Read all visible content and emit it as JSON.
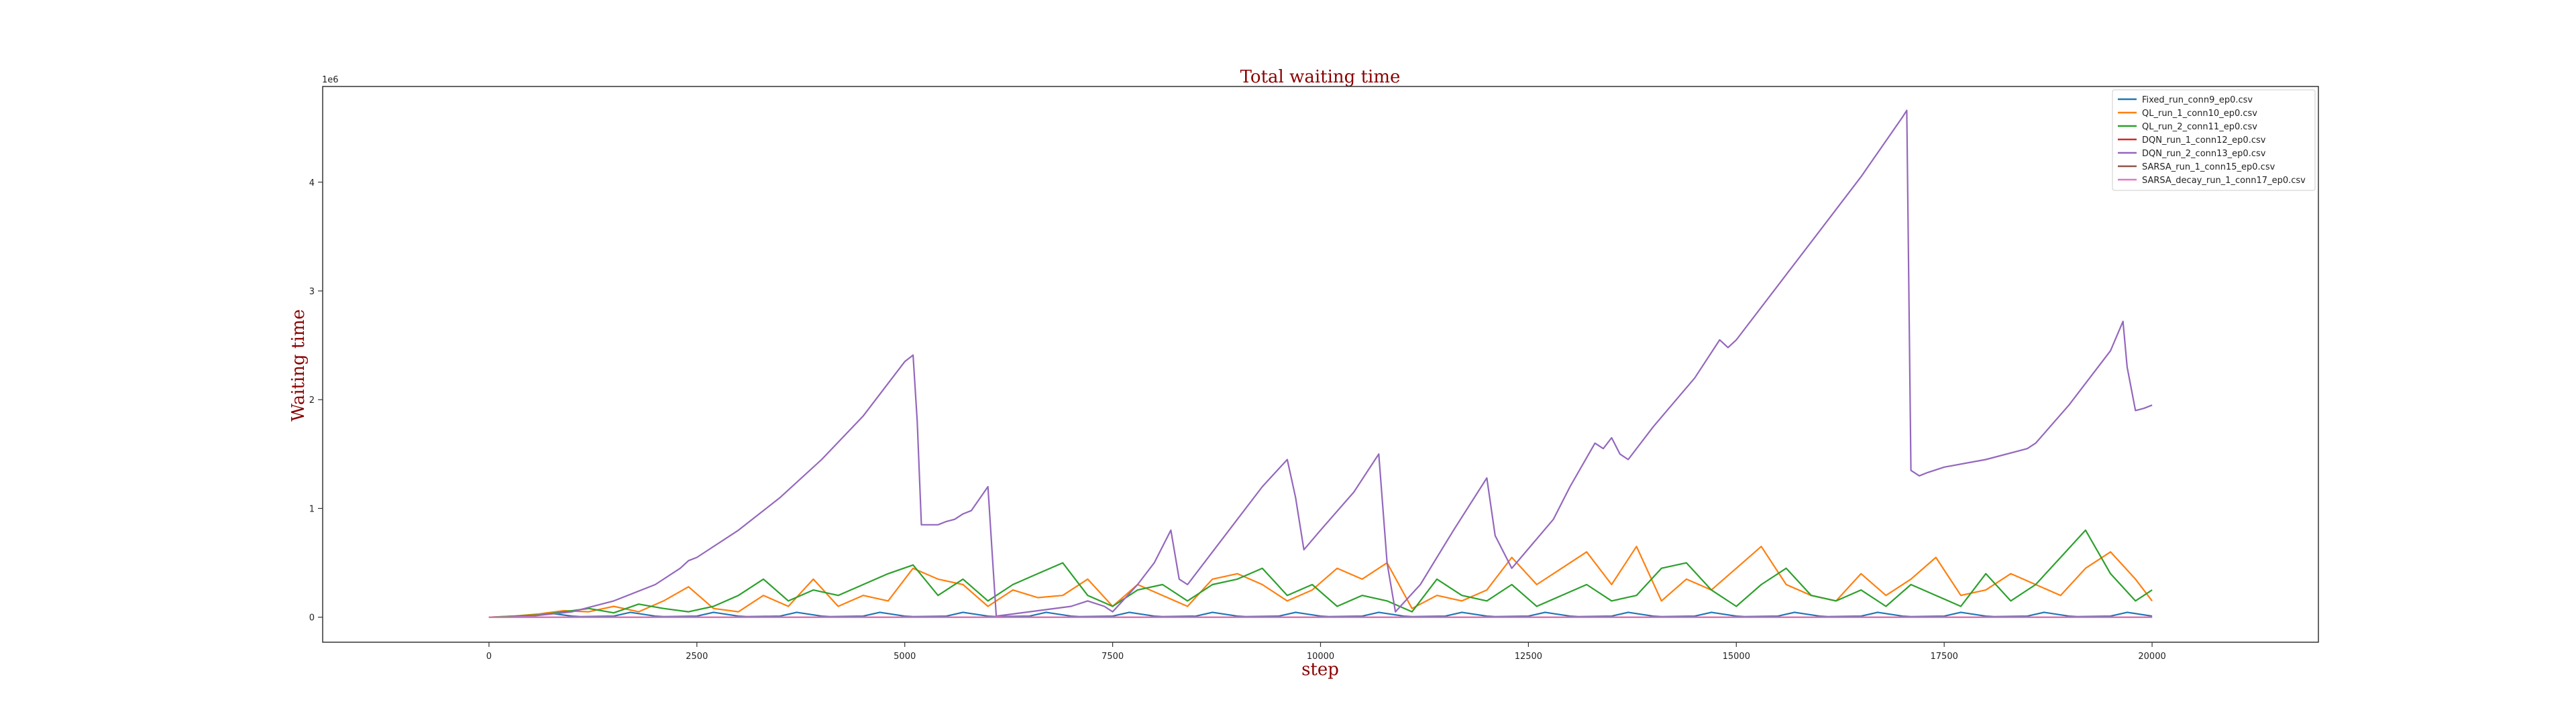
{
  "chart_data": {
    "type": "line",
    "title": "Total waiting time",
    "xlabel": "step",
    "ylabel": "Waiting time",
    "y_offset_label": "1e6",
    "xlim": [
      -2000,
      22000
    ],
    "ylim": [
      -0.23,
      4.88
    ],
    "xticks": [
      0,
      2500,
      5000,
      7500,
      10000,
      12500,
      15000,
      17500,
      20000
    ],
    "yticks": [
      0,
      1,
      2,
      3,
      4
    ],
    "grid": false,
    "legend_position": "top-right",
    "series": [
      {
        "name": "Fixed_run_conn9_ep0.csv",
        "color": "#1f77b4",
        "x": [
          0,
          500,
          700,
          1000,
          1100,
          1500,
          1700,
          2000,
          2100,
          2500,
          2700,
          3000,
          3100,
          3500,
          3700,
          4000,
          4100,
          4500,
          4700,
          5000,
          5100,
          5500,
          5700,
          6000,
          6100,
          6500,
          6700,
          7000,
          7100,
          7500,
          7700,
          8000,
          8100,
          8500,
          8700,
          9000,
          9100,
          9500,
          9700,
          10000,
          10100,
          10500,
          10700,
          11000,
          11100,
          11500,
          11700,
          12000,
          12100,
          12500,
          12700,
          13000,
          13100,
          13500,
          13700,
          14000,
          14100,
          14500,
          14700,
          15000,
          15100,
          15500,
          15700,
          16000,
          16100,
          16500,
          16700,
          17000,
          17100,
          17500,
          17700,
          18000,
          18100,
          18500,
          18700,
          19000,
          19100,
          19500,
          19700,
          20000
        ],
        "y": [
          0,
          0.01,
          0.04,
          0.01,
          0.005,
          0.01,
          0.045,
          0.01,
          0.005,
          0.01,
          0.045,
          0.01,
          0.005,
          0.01,
          0.045,
          0.01,
          0.005,
          0.01,
          0.045,
          0.01,
          0.005,
          0.01,
          0.045,
          0.01,
          0.005,
          0.01,
          0.045,
          0.01,
          0.005,
          0.01,
          0.045,
          0.01,
          0.005,
          0.01,
          0.045,
          0.01,
          0.005,
          0.01,
          0.045,
          0.01,
          0.005,
          0.01,
          0.045,
          0.01,
          0.005,
          0.01,
          0.045,
          0.01,
          0.005,
          0.01,
          0.045,
          0.01,
          0.005,
          0.01,
          0.045,
          0.01,
          0.005,
          0.01,
          0.045,
          0.01,
          0.005,
          0.01,
          0.045,
          0.01,
          0.005,
          0.01,
          0.045,
          0.01,
          0.005,
          0.01,
          0.045,
          0.01,
          0.005,
          0.01,
          0.045,
          0.01,
          0.005,
          0.01,
          0.045,
          0.01
        ]
      },
      {
        "name": "QL_run_1_conn10_ep0.csv",
        "color": "#ff7f0e",
        "x": [
          0,
          300,
          600,
          900,
          1200,
          1500,
          1800,
          2100,
          2400,
          2700,
          3000,
          3300,
          3600,
          3900,
          4200,
          4500,
          4800,
          5100,
          5400,
          5700,
          6000,
          6300,
          6600,
          6900,
          7200,
          7500,
          7800,
          8100,
          8400,
          8700,
          9000,
          9300,
          9600,
          9900,
          10200,
          10500,
          10800,
          11100,
          11400,
          11700,
          12000,
          12300,
          12600,
          12900,
          13200,
          13500,
          13800,
          14100,
          14400,
          14700,
          15000,
          15300,
          15600,
          15900,
          16200,
          16500,
          16800,
          17100,
          17400,
          17700,
          18000,
          18300,
          18600,
          18900,
          19200,
          19500,
          19800,
          20000
        ],
        "y": [
          0,
          0.01,
          0.03,
          0.06,
          0.05,
          0.1,
          0.05,
          0.15,
          0.28,
          0.08,
          0.05,
          0.2,
          0.1,
          0.35,
          0.1,
          0.2,
          0.15,
          0.45,
          0.35,
          0.3,
          0.1,
          0.25,
          0.18,
          0.2,
          0.35,
          0.1,
          0.3,
          0.2,
          0.1,
          0.35,
          0.4,
          0.3,
          0.15,
          0.25,
          0.45,
          0.35,
          0.5,
          0.08,
          0.2,
          0.15,
          0.25,
          0.55,
          0.3,
          0.45,
          0.6,
          0.3,
          0.65,
          0.15,
          0.35,
          0.25,
          0.45,
          0.65,
          0.3,
          0.2,
          0.15,
          0.4,
          0.2,
          0.35,
          0.55,
          0.2,
          0.25,
          0.4,
          0.3,
          0.2,
          0.45,
          0.6,
          0.35,
          0.15
        ]
      },
      {
        "name": "QL_run_2_conn11_ep0.csv",
        "color": "#2ca02c",
        "x": [
          0,
          300,
          600,
          900,
          1200,
          1500,
          1800,
          2100,
          2400,
          2700,
          3000,
          3300,
          3600,
          3900,
          4200,
          4500,
          4800,
          5100,
          5400,
          5700,
          6000,
          6300,
          6600,
          6900,
          7200,
          7500,
          7800,
          8100,
          8400,
          8700,
          9000,
          9300,
          9600,
          9900,
          10200,
          10500,
          10800,
          11100,
          11400,
          11700,
          12000,
          12300,
          12600,
          12900,
          13200,
          13500,
          13800,
          14100,
          14400,
          14700,
          15000,
          15300,
          15600,
          15900,
          16200,
          16500,
          16800,
          17100,
          17400,
          17700,
          18000,
          18300,
          18600,
          18900,
          19200,
          19500,
          19800,
          20000
        ],
        "y": [
          0,
          0.01,
          0.02,
          0.05,
          0.08,
          0.04,
          0.12,
          0.08,
          0.05,
          0.1,
          0.2,
          0.35,
          0.15,
          0.25,
          0.2,
          0.3,
          0.4,
          0.48,
          0.2,
          0.35,
          0.15,
          0.3,
          0.4,
          0.5,
          0.2,
          0.1,
          0.25,
          0.3,
          0.15,
          0.3,
          0.35,
          0.45,
          0.2,
          0.3,
          0.1,
          0.2,
          0.15,
          0.05,
          0.35,
          0.2,
          0.15,
          0.3,
          0.1,
          0.2,
          0.3,
          0.15,
          0.2,
          0.45,
          0.5,
          0.25,
          0.1,
          0.3,
          0.45,
          0.2,
          0.15,
          0.25,
          0.1,
          0.3,
          0.2,
          0.1,
          0.4,
          0.15,
          0.3,
          0.55,
          0.8,
          0.4,
          0.15,
          0.25
        ]
      },
      {
        "name": "DQN_run_1_conn12_ep0.csv",
        "color": "#d62728",
        "x": [
          0,
          20000
        ],
        "y": [
          0,
          0
        ]
      },
      {
        "name": "DQN_run_2_conn13_ep0.csv",
        "color": "#9467bd",
        "x": [
          0,
          200,
          500,
          1000,
          1500,
          2000,
          2300,
          2400,
          2500,
          3000,
          3500,
          4000,
          4500,
          5000,
          5100,
          5150,
          5200,
          5400,
          5500,
          5600,
          5700,
          5800,
          6000,
          6050,
          6100,
          6500,
          7000,
          7200,
          7400,
          7500,
          7800,
          8000,
          8200,
          8300,
          8400,
          8600,
          9000,
          9300,
          9600,
          9700,
          9800,
          10000,
          10400,
          10700,
          10800,
          10900,
          11200,
          11600,
          12000,
          12100,
          12300,
          12800,
          13000,
          13300,
          13400,
          13500,
          13600,
          13700,
          14000,
          14500,
          14800,
          14900,
          15000,
          15500,
          16000,
          16500,
          17000,
          17050,
          17100,
          17200,
          17300,
          17500,
          18000,
          18500,
          18600,
          19000,
          19500,
          19650,
          19700,
          19800,
          19900,
          20000
        ],
        "y": [
          0,
          0,
          0.01,
          0.05,
          0.15,
          0.3,
          0.45,
          0.52,
          0.55,
          0.8,
          1.1,
          1.45,
          1.85,
          2.35,
          2.41,
          1.8,
          0.85,
          0.85,
          0.88,
          0.9,
          0.95,
          0.98,
          1.2,
          0.6,
          0.01,
          0.05,
          0.1,
          0.15,
          0.1,
          0.05,
          0.3,
          0.5,
          0.8,
          0.35,
          0.3,
          0.5,
          0.9,
          1.2,
          1.45,
          1.1,
          0.62,
          0.8,
          1.15,
          1.5,
          0.5,
          0.05,
          0.3,
          0.8,
          1.28,
          0.75,
          0.45,
          0.9,
          1.2,
          1.6,
          1.55,
          1.65,
          1.5,
          1.45,
          1.75,
          2.2,
          2.55,
          2.48,
          2.55,
          3.05,
          3.55,
          4.05,
          4.6,
          4.66,
          1.35,
          1.3,
          1.33,
          1.38,
          1.45,
          1.55,
          1.6,
          1.95,
          2.45,
          2.72,
          2.3,
          1.9,
          1.92,
          1.95
        ]
      },
      {
        "name": "SARSA_run_1_conn15_ep0.csv",
        "color": "#8c564b",
        "x": [
          0,
          20000
        ],
        "y": [
          0,
          0
        ]
      },
      {
        "name": "SARSA_decay_run_1_conn17_ep0.csv",
        "color": "#e377c2",
        "x": [
          0,
          20000
        ],
        "y": [
          0,
          0
        ]
      }
    ]
  }
}
